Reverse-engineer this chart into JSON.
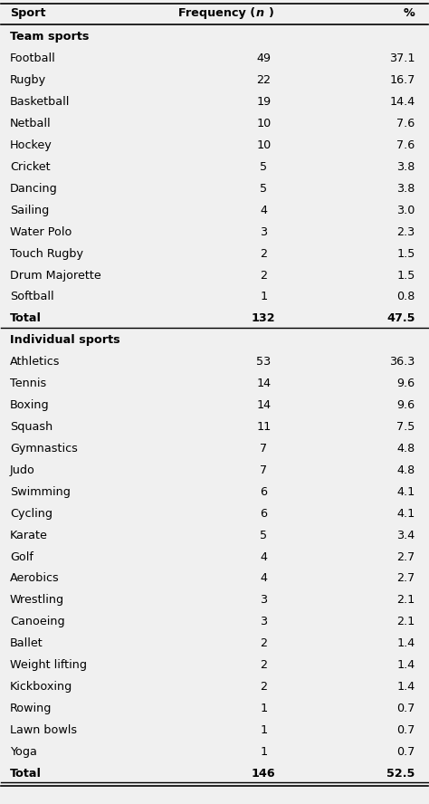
{
  "header": [
    "Sport",
    "Frequency (n)",
    "%"
  ],
  "rows": [
    {
      "label": "Team sports",
      "freq": "",
      "pct": "",
      "bold": true,
      "section_header": true
    },
    {
      "label": "Football",
      "freq": "49",
      "pct": "37.1",
      "bold": false
    },
    {
      "label": "Rugby",
      "freq": "22",
      "pct": "16.7",
      "bold": false
    },
    {
      "label": "Basketball",
      "freq": "19",
      "pct": "14.4",
      "bold": false
    },
    {
      "label": "Netball",
      "freq": "10",
      "pct": "7.6",
      "bold": false
    },
    {
      "label": "Hockey",
      "freq": "10",
      "pct": "7.6",
      "bold": false
    },
    {
      "label": "Cricket",
      "freq": "5",
      "pct": "3.8",
      "bold": false
    },
    {
      "label": "Dancing",
      "freq": "5",
      "pct": "3.8",
      "bold": false
    },
    {
      "label": "Sailing",
      "freq": "4",
      "pct": "3.0",
      "bold": false
    },
    {
      "label": "Water Polo",
      "freq": "3",
      "pct": "2.3",
      "bold": false
    },
    {
      "label": "Touch Rugby",
      "freq": "2",
      "pct": "1.5",
      "bold": false
    },
    {
      "label": "Drum Majorette",
      "freq": "2",
      "pct": "1.5",
      "bold": false
    },
    {
      "label": "Softball",
      "freq": "1",
      "pct": "0.8",
      "bold": false
    },
    {
      "label": "Total",
      "freq": "132",
      "pct": "47.5",
      "bold": true,
      "total": true
    },
    {
      "label": "Individual sports",
      "freq": "",
      "pct": "",
      "bold": true,
      "section_header": true
    },
    {
      "label": "Athletics",
      "freq": "53",
      "pct": "36.3",
      "bold": false
    },
    {
      "label": "Tennis",
      "freq": "14",
      "pct": "9.6",
      "bold": false
    },
    {
      "label": "Boxing",
      "freq": "14",
      "pct": "9.6",
      "bold": false
    },
    {
      "label": "Squash",
      "freq": "11",
      "pct": "7.5",
      "bold": false
    },
    {
      "label": "Gymnastics",
      "freq": "7",
      "pct": "4.8",
      "bold": false
    },
    {
      "label": "Judo",
      "freq": "7",
      "pct": "4.8",
      "bold": false
    },
    {
      "label": "Swimming",
      "freq": "6",
      "pct": "4.1",
      "bold": false
    },
    {
      "label": "Cycling",
      "freq": "6",
      "pct": "4.1",
      "bold": false
    },
    {
      "label": "Karate",
      "freq": "5",
      "pct": "3.4",
      "bold": false
    },
    {
      "label": "Golf",
      "freq": "4",
      "pct": "2.7",
      "bold": false
    },
    {
      "label": "Aerobics",
      "freq": "4",
      "pct": "2.7",
      "bold": false
    },
    {
      "label": "Wrestling",
      "freq": "3",
      "pct": "2.1",
      "bold": false
    },
    {
      "label": "Canoeing",
      "freq": "3",
      "pct": "2.1",
      "bold": false
    },
    {
      "label": "Ballet",
      "freq": "2",
      "pct": "1.4",
      "bold": false
    },
    {
      "label": "Weight lifting",
      "freq": "2",
      "pct": "1.4",
      "bold": false
    },
    {
      "label": "Kickboxing",
      "freq": "2",
      "pct": "1.4",
      "bold": false
    },
    {
      "label": "Rowing",
      "freq": "1",
      "pct": "0.7",
      "bold": false
    },
    {
      "label": "Lawn bowls",
      "freq": "1",
      "pct": "0.7",
      "bold": false
    },
    {
      "label": "Yoga",
      "freq": "1",
      "pct": "0.7",
      "bold": false
    },
    {
      "label": "Total",
      "freq": "146",
      "pct": "52.5",
      "bold": true,
      "total": true
    }
  ],
  "bg_color": "#f0f0f0",
  "font_size": 9.2,
  "header_font_size": 9.2
}
